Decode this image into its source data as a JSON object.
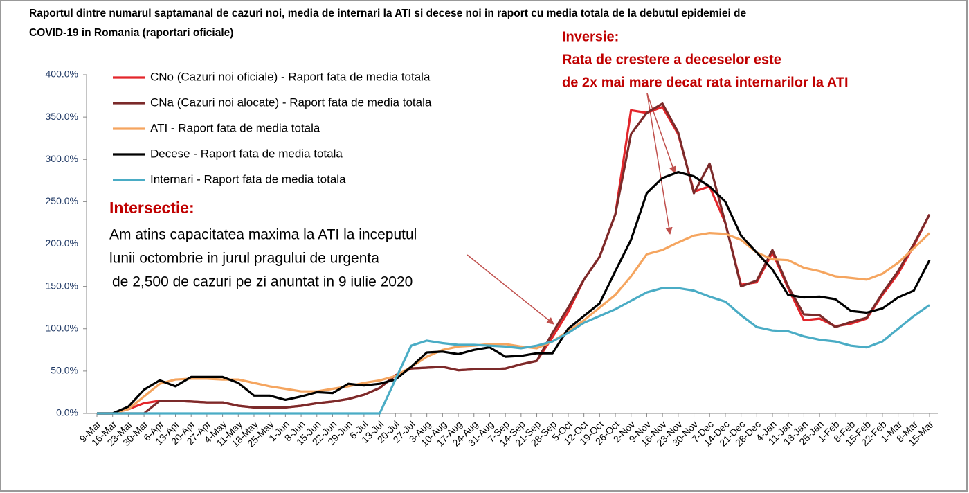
{
  "chart_data": {
    "type": "line",
    "title": [
      "Raportul dintre numarul saptamanal de cazuri noi, media de internari la ATI si decese noi in raport cu media totala de la debutul epidemiei de",
      "COVID-19 in Romania (raportari oficiale)"
    ],
    "categories": [
      "9-Mar",
      "16-Mar",
      "23-Mar",
      "30-Mar",
      "6-Apr",
      "13-Apr",
      "20-Apr",
      "27-Apr",
      "4-May",
      "11-May",
      "18-May",
      "25-May",
      "1-Jun",
      "8-Jun",
      "15-Jun",
      "22-Jun",
      "29-Jun",
      "6-Jul",
      "13-Jul",
      "20-Jul",
      "27-Jul",
      "3-Aug",
      "10-Aug",
      "17-Aug",
      "24-Aug",
      "31-Aug",
      "7-Sep",
      "14-Sep",
      "21-Sep",
      "28-Sep",
      "5-Oct",
      "12-Oct",
      "19-Oct",
      "26-Oct",
      "2-Nov",
      "9-Nov",
      "16-Nov",
      "23-Nov",
      "30-Nov",
      "7-Dec",
      "14-Dec",
      "21-Dec",
      "28-Dec",
      "4-Jan",
      "11-Jan",
      "18-Jan",
      "25-Jan",
      "1-Feb",
      "8-Feb",
      "15-Feb",
      "22-Feb",
      "1-Mar",
      "8-Mar",
      "15-Mar"
    ],
    "series": [
      {
        "name": "CNo (Cazuri noi oficiale) - Raport fata de media totala",
        "color": "#e3262b",
        "values": [
          0,
          0,
          5,
          12,
          15,
          15,
          14,
          13,
          13,
          9,
          7,
          7,
          7,
          9,
          12,
          14,
          17,
          22,
          30,
          45,
          53,
          54,
          55,
          51,
          52,
          52,
          53,
          58,
          62,
          90,
          120,
          158,
          185,
          235,
          358,
          355,
          362,
          330,
          262,
          268,
          225,
          152,
          155,
          190,
          148,
          110,
          112,
          103,
          106,
          112,
          140,
          165,
          198,
          235
        ]
      },
      {
        "name": "CNa (Cazuri noi alocate) - Raport fata de media totala",
        "color": "#7b2a2a",
        "values": [
          0,
          0,
          0,
          0,
          15,
          15,
          14,
          13,
          13,
          9,
          7,
          7,
          7,
          9,
          12,
          14,
          17,
          22,
          30,
          45,
          53,
          54,
          55,
          51,
          52,
          52,
          53,
          58,
          62,
          95,
          125,
          158,
          185,
          235,
          330,
          355,
          366,
          332,
          260,
          295,
          225,
          150,
          157,
          193,
          150,
          117,
          116,
          102,
          108,
          113,
          142,
          168,
          200,
          235
        ]
      },
      {
        "name": "ATI - Raport fata de media totala",
        "color": "#f5a55f",
        "values": [
          0,
          0,
          5,
          20,
          35,
          40,
          41,
          41,
          40,
          40,
          36,
          32,
          29,
          26,
          26,
          29,
          32,
          36,
          39,
          44,
          55,
          67,
          75,
          79,
          80,
          82,
          82,
          79,
          77,
          85,
          97,
          110,
          125,
          140,
          162,
          188,
          193,
          202,
          210,
          213,
          212,
          205,
          190,
          182,
          181,
          172,
          168,
          162,
          160,
          158,
          165,
          178,
          195,
          213
        ]
      },
      {
        "name": "Decese - Raport fata de media totala",
        "color": "#000000",
        "values": [
          0,
          0,
          8,
          28,
          39,
          32,
          43,
          43,
          43,
          36,
          21,
          21,
          16,
          20,
          25,
          24,
          35,
          33,
          35,
          40,
          55,
          72,
          73,
          70,
          75,
          78,
          67,
          68,
          71,
          71,
          100,
          115,
          130,
          168,
          205,
          260,
          278,
          285,
          280,
          268,
          250,
          210,
          190,
          170,
          140,
          137,
          138,
          135,
          121,
          119,
          124,
          137,
          145,
          181
        ]
      },
      {
        "name": "Internari - Raport fata de media totala",
        "color": "#4aacc5",
        "values": [
          0,
          0,
          0,
          0,
          0,
          0,
          0,
          0,
          0,
          0,
          0,
          0,
          0,
          0,
          0,
          0,
          0,
          0,
          0,
          40,
          80,
          86,
          83,
          81,
          81,
          80,
          79,
          77,
          80,
          85,
          95,
          107,
          115,
          123,
          133,
          143,
          148,
          148,
          145,
          138,
          132,
          116,
          102,
          98,
          97,
          91,
          87,
          85,
          80,
          78,
          85,
          100,
          115,
          128
        ]
      }
    ],
    "ylim": [
      0,
      400
    ],
    "yticks": [
      {
        "value": 0,
        "label": "0.0%"
      },
      {
        "value": 50,
        "label": "50.0%"
      },
      {
        "value": 100,
        "label": "100.0%"
      },
      {
        "value": 150,
        "label": "150.0%"
      },
      {
        "value": 200,
        "label": "200.0%"
      },
      {
        "value": 250,
        "label": "250.0%"
      },
      {
        "value": 300,
        "label": "300.0%"
      },
      {
        "value": 350,
        "label": "350.0%"
      },
      {
        "value": 400,
        "label": "400.0%"
      }
    ],
    "grid": false,
    "legend": "upper left",
    "annotations": [
      {
        "lines": [
          "Inversie:",
          "Rata de crestere a deceselor este",
          "de 2x mai mare decat rata internarilor la ATI"
        ],
        "color": "#c00000"
      },
      {
        "lines": [
          "Intersectie:"
        ],
        "color": "#c00000"
      },
      {
        "lines": [
          "Am atins capacitatea maxima la ATI la inceputul",
          "lunii octombrie in jurul pragului de urgenta",
          "de 2,500 de cazuri pe zi anuntat in 9 iulie 2020"
        ],
        "color": "#000000"
      }
    ]
  }
}
